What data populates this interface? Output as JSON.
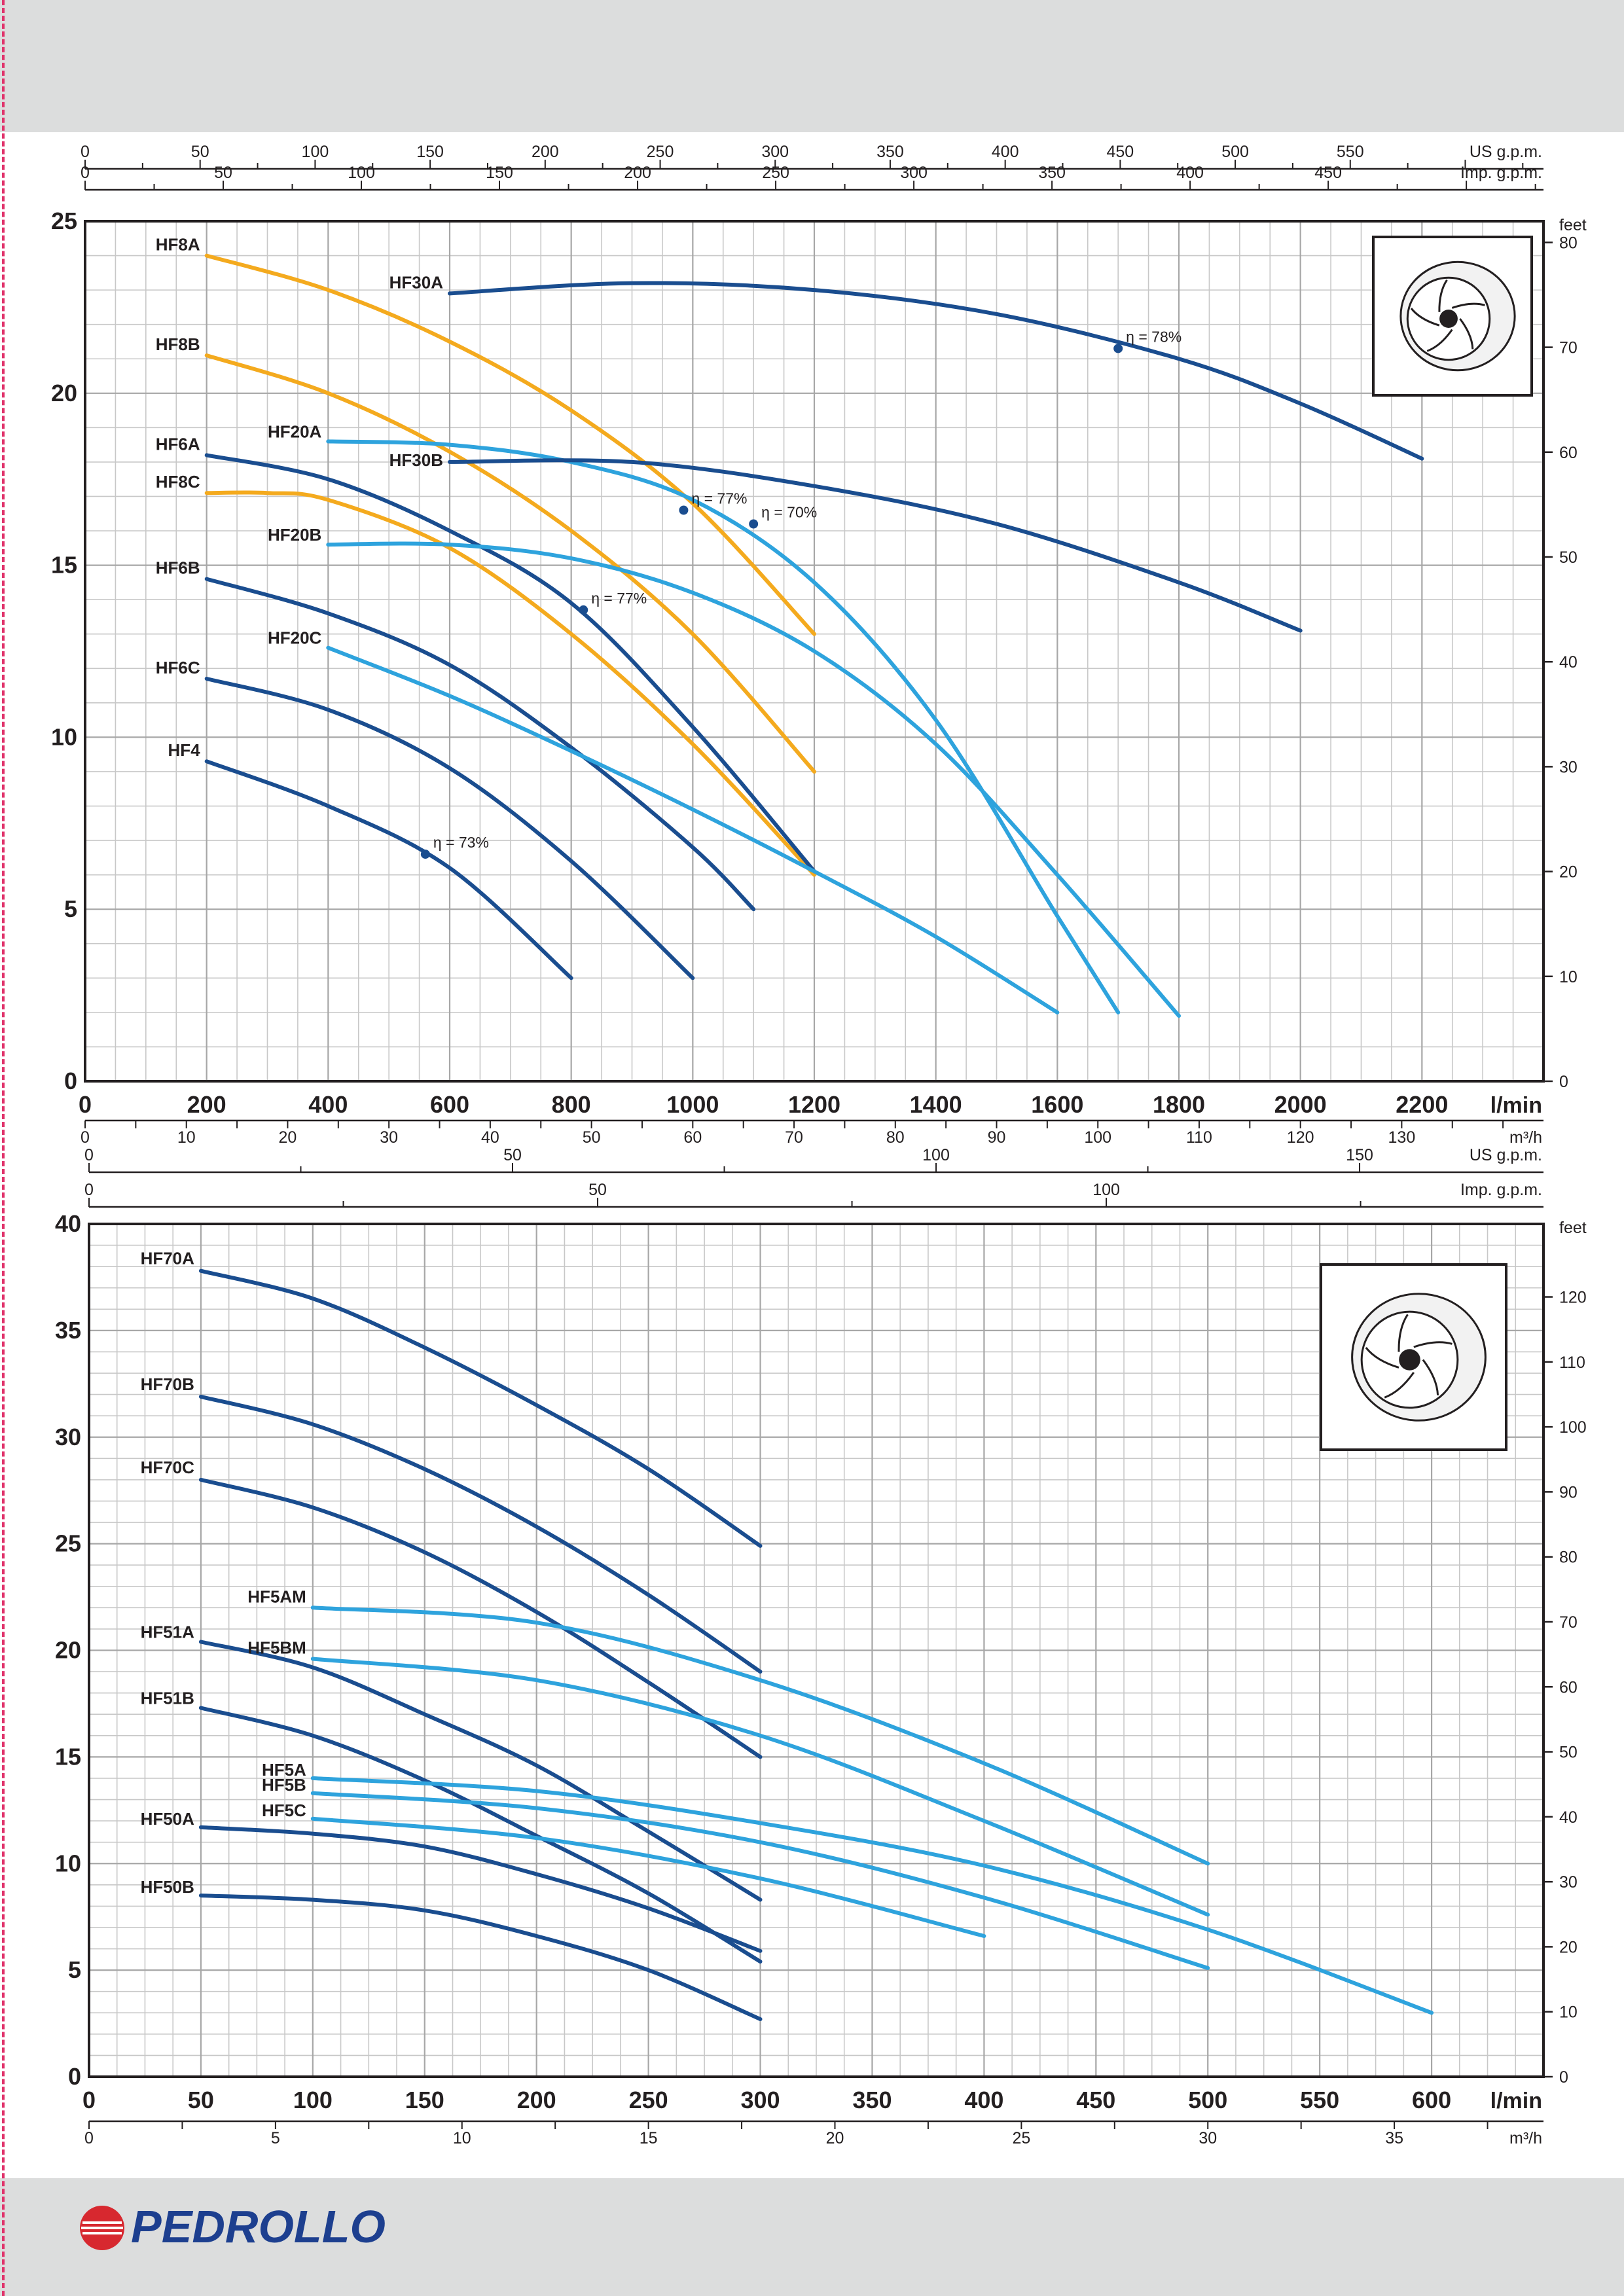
{
  "colors": {
    "dark_blue": "#1a4d8f",
    "light_blue": "#2ea3dd",
    "orange": "#f4aa1e",
    "grid": "#c8c8c8",
    "band": "#dcdddd",
    "brand_red": "#d7282f",
    "brand_navy": "#1d3f8f"
  },
  "brand": {
    "name": "PEDROLLO"
  },
  "chart_data": [
    {
      "type": "line",
      "x_unit": "l/min",
      "y_unit_left": "",
      "y_unit_right": "feet",
      "secondary_x_top_units": [
        "US g.p.m.",
        "Imp. g.p.m."
      ],
      "secondary_x_bottom_unit": "m³/h",
      "xlim": [
        0,
        2400
      ],
      "ylim": [
        0,
        25
      ],
      "x_ticks": [
        0,
        200,
        400,
        600,
        800,
        1000,
        1200,
        1400,
        1600,
        1800,
        2000,
        2200
      ],
      "y_ticks": [
        0,
        5,
        10,
        15,
        20,
        25
      ],
      "feet_ticks": [
        0,
        10,
        20,
        30,
        40,
        50,
        60,
        70,
        80
      ],
      "usgpm_ticks": [
        0,
        50,
        100,
        150,
        200,
        250,
        300,
        350,
        400,
        450,
        500,
        550
      ],
      "impgpm_ticks": [
        0,
        50,
        100,
        150,
        200,
        250,
        300,
        350,
        400,
        450
      ],
      "m3h_ticks": [
        0,
        10,
        20,
        30,
        40,
        50,
        60,
        70,
        80,
        90,
        100,
        110,
        120,
        130
      ],
      "series": [
        {
          "name": "HF8A",
          "color": "orange",
          "x": [
            200,
            400,
            600,
            800,
            1000,
            1200
          ],
          "y": [
            24,
            23,
            21.5,
            19.5,
            16.8,
            13
          ]
        },
        {
          "name": "HF8B",
          "color": "orange",
          "x": [
            200,
            400,
            600,
            800,
            1000,
            1200
          ],
          "y": [
            21.1,
            20,
            18.3,
            16,
            13,
            9
          ]
        },
        {
          "name": "HF8C",
          "color": "orange",
          "x": [
            200,
            300,
            400,
            600,
            800,
            1000,
            1200
          ],
          "y": [
            17.1,
            17.1,
            16.9,
            15.5,
            13,
            9.8,
            6
          ]
        },
        {
          "name": "HF6A",
          "color": "dark_blue",
          "x": [
            200,
            400,
            600,
            800,
            1000,
            1200
          ],
          "y": [
            18.2,
            17.5,
            16,
            13.9,
            10.3,
            6.1
          ]
        },
        {
          "name": "HF6B",
          "color": "dark_blue",
          "x": [
            200,
            400,
            600,
            800,
            1000,
            1100
          ],
          "y": [
            14.6,
            13.6,
            12.1,
            9.7,
            6.8,
            5
          ]
        },
        {
          "name": "HF6C",
          "color": "dark_blue",
          "x": [
            200,
            400,
            600,
            800,
            1000
          ],
          "y": [
            11.7,
            10.8,
            9.1,
            6.4,
            3
          ]
        },
        {
          "name": "HF4",
          "color": "dark_blue",
          "x": [
            200,
            400,
            600,
            800
          ],
          "y": [
            9.3,
            8,
            6.2,
            3
          ]
        },
        {
          "name": "HF20A",
          "color": "light_blue",
          "x": [
            400,
            600,
            800,
            1000,
            1200,
            1400,
            1600,
            1700
          ],
          "y": [
            18.6,
            18.5,
            18,
            16.9,
            14.5,
            10.5,
            4.8,
            2
          ]
        },
        {
          "name": "HF20B",
          "color": "light_blue",
          "x": [
            400,
            600,
            800,
            1000,
            1200,
            1400,
            1600,
            1800
          ],
          "y": [
            15.6,
            15.6,
            15.2,
            14.2,
            12.5,
            9.8,
            6,
            1.9
          ]
        },
        {
          "name": "HF20C",
          "color": "light_blue",
          "x": [
            400,
            600,
            800,
            1000,
            1200,
            1400,
            1600
          ],
          "y": [
            12.6,
            11.2,
            9.6,
            7.9,
            6.1,
            4.2,
            2
          ]
        },
        {
          "name": "HF30A",
          "color": "dark_blue",
          "x": [
            600,
            900,
            1200,
            1500,
            1800,
            2000,
            2200
          ],
          "y": [
            22.9,
            23.2,
            23,
            22.3,
            21,
            19.7,
            18.1
          ]
        },
        {
          "name": "HF30B",
          "color": "dark_blue",
          "x": [
            600,
            900,
            1200,
            1500,
            1800,
            2000
          ],
          "y": [
            18,
            18,
            17.3,
            16.2,
            14.5,
            13.1
          ]
        }
      ],
      "annotations": [
        {
          "text": "η = 73%",
          "x": 560,
          "y": 6.6
        },
        {
          "text": "η = 77%",
          "x": 820,
          "y": 13.7
        },
        {
          "text": "η = 77%",
          "x": 985,
          "y": 16.6
        },
        {
          "text": "η = 70%",
          "x": 1100,
          "y": 16.2
        },
        {
          "text": "η = 78%",
          "x": 1700,
          "y": 21.3
        }
      ]
    },
    {
      "type": "line",
      "x_unit": "l/min",
      "y_unit_left": "",
      "y_unit_right": "feet",
      "secondary_x_top_units": [
        "US g.p.m.",
        "Imp. g.p.m."
      ],
      "secondary_x_bottom_unit": "m³/h",
      "xlim": [
        0,
        650
      ],
      "ylim": [
        0,
        40
      ],
      "x_ticks": [
        0,
        50,
        100,
        150,
        200,
        250,
        300,
        350,
        400,
        450,
        500,
        550,
        600
      ],
      "y_ticks": [
        0,
        5,
        10,
        15,
        20,
        25,
        30,
        35,
        40
      ],
      "feet_ticks": [
        0,
        10,
        20,
        30,
        40,
        50,
        60,
        70,
        80,
        90,
        100,
        110,
        120
      ],
      "usgpm_ticks": [
        0,
        50,
        100,
        150
      ],
      "impgpm_ticks": [
        0,
        50,
        100
      ],
      "m3h_ticks": [
        0,
        5,
        10,
        15,
        20,
        25,
        30,
        35
      ],
      "series": [
        {
          "name": "HF70A",
          "color": "dark_blue",
          "x": [
            50,
            100,
            150,
            200,
            250,
            300
          ],
          "y": [
            37.8,
            36.5,
            34.2,
            31.5,
            28.5,
            24.9
          ]
        },
        {
          "name": "HF70B",
          "color": "dark_blue",
          "x": [
            50,
            100,
            150,
            200,
            250,
            300
          ],
          "y": [
            31.9,
            30.6,
            28.5,
            25.8,
            22.6,
            19
          ]
        },
        {
          "name": "HF70C",
          "color": "dark_blue",
          "x": [
            50,
            100,
            150,
            200,
            250,
            300
          ],
          "y": [
            28,
            26.7,
            24.6,
            21.8,
            18.5,
            15
          ]
        },
        {
          "name": "HF51A",
          "color": "dark_blue",
          "x": [
            50,
            100,
            150,
            200,
            250,
            300
          ],
          "y": [
            20.4,
            19.2,
            17,
            14.6,
            11.5,
            8.3
          ]
        },
        {
          "name": "HF51B",
          "color": "dark_blue",
          "x": [
            50,
            100,
            150,
            200,
            250,
            300
          ],
          "y": [
            17.3,
            16,
            13.9,
            11.3,
            8.6,
            5.4
          ]
        },
        {
          "name": "HF50A",
          "color": "dark_blue",
          "x": [
            50,
            100,
            150,
            200,
            250,
            300
          ],
          "y": [
            11.7,
            11.4,
            10.8,
            9.5,
            7.9,
            5.9
          ]
        },
        {
          "name": "HF50B",
          "color": "dark_blue",
          "x": [
            50,
            100,
            150,
            200,
            250,
            300
          ],
          "y": [
            8.5,
            8.3,
            7.8,
            6.6,
            5,
            2.7
          ]
        },
        {
          "name": "HF5AM",
          "color": "light_blue",
          "x": [
            100,
            200,
            300,
            400,
            500
          ],
          "y": [
            22,
            21.3,
            18.6,
            14.7,
            10
          ]
        },
        {
          "name": "HF5BM",
          "color": "light_blue",
          "x": [
            100,
            200,
            300,
            400,
            500
          ],
          "y": [
            19.6,
            18.6,
            16,
            12,
            7.6
          ]
        },
        {
          "name": "HF5A",
          "color": "light_blue",
          "x": [
            100,
            200,
            300,
            400,
            500,
            600
          ],
          "y": [
            14,
            13.4,
            11.9,
            9.9,
            6.9,
            3
          ]
        },
        {
          "name": "HF5B",
          "color": "light_blue",
          "x": [
            100,
            200,
            300,
            400,
            500
          ],
          "y": [
            13.3,
            12.6,
            11,
            8.4,
            5.1
          ]
        },
        {
          "name": "HF5C",
          "color": "light_blue",
          "x": [
            100,
            200,
            300,
            400
          ],
          "y": [
            12.1,
            11.2,
            9.3,
            6.6
          ]
        }
      ],
      "annotations": []
    }
  ]
}
